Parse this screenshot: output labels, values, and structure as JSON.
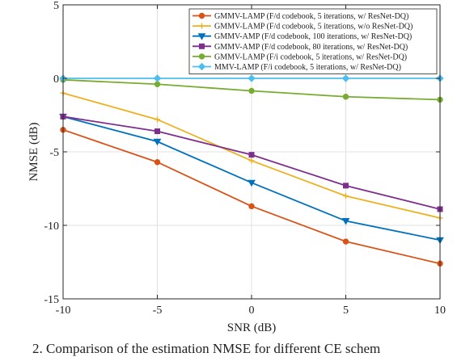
{
  "chart_data": {
    "type": "line",
    "xlabel": "SNR (dB)",
    "ylabel": "NMSE (dB)",
    "xlim": [
      -10,
      10
    ],
    "ylim": [
      -15,
      5
    ],
    "xticks": [
      -10,
      -5,
      0,
      5,
      10
    ],
    "yticks": [
      -15,
      -10,
      -5,
      0,
      5
    ],
    "grid": true,
    "legend_position": "top-right",
    "x": [
      -10,
      -5,
      0,
      5,
      10
    ],
    "series": [
      {
        "name": "GMMV-LAMP (F/d codebook, 5 iterations, w/ ResNet-DQ)",
        "values": [
          -3.5,
          -5.7,
          -8.7,
          -11.1,
          -12.6
        ],
        "color": "#D95319",
        "marker": "circle"
      },
      {
        "name": "GMMV-LAMP (F/d codebook, 5 iterations, w/o ResNet-DQ)",
        "values": [
          -1.0,
          -2.8,
          -5.6,
          -8.0,
          -9.5
        ],
        "color": "#EDB120",
        "marker": "plus"
      },
      {
        "name": "GMMV-AMP (F/d codebook, 100 iterations, w/ ResNet-DQ)",
        "values": [
          -2.6,
          -4.3,
          -7.1,
          -9.7,
          -11.0
        ],
        "color": "#0072BD",
        "marker": "triangle-down"
      },
      {
        "name": "GMMV-AMP (F/d codebook, 80 iterations, w/ ResNet-DQ)",
        "values": [
          -2.6,
          -3.6,
          -5.2,
          -7.3,
          -8.9
        ],
        "color": "#7E2F8E",
        "marker": "square"
      },
      {
        "name": "GMMV-LAMP (F/i codebook, 5 iterations, w/ ResNet-DQ)",
        "values": [
          -0.1,
          -0.4,
          -0.85,
          -1.25,
          -1.45
        ],
        "color": "#77AC30",
        "marker": "circle"
      },
      {
        "name": "MMV-LAMP (F/i codebook, 5 iterations, w/ ResNet-DQ)",
        "values": [
          0.0,
          0.0,
          0.0,
          0.0,
          0.0
        ],
        "color": "#4DBEEE",
        "marker": "diamond"
      }
    ]
  },
  "caption": "2.  Comparison of the estimation NMSE for different CE schem"
}
